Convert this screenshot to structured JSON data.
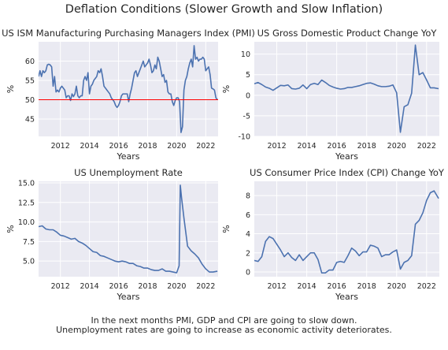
{
  "figure": {
    "title": "Deflation Conditions (Slower Growth and Slow Inflation)",
    "caption_line1": "In the next months PMI, GDP and CPI are going to slow down.",
    "caption_line2": "Unemployment rates are going to increase as economic activity deteriorates."
  },
  "colors": {
    "background": "#eaeaf2",
    "grid": "#ffffff",
    "line": "#4c72b0",
    "reference_line": "#ff0000",
    "text": "#262626"
  },
  "chart_data": [
    {
      "type": "line",
      "title": "US ISM Manufacturing Purchasing Managers Index (PMI)",
      "xlabel": "Years",
      "ylabel": "%",
      "xlim": [
        2010.5,
        2022.85
      ],
      "ylim": [
        40.5,
        65
      ],
      "xticks": [
        2012,
        2014,
        2016,
        2018,
        2020,
        2022
      ],
      "yticks": [
        45,
        50,
        55,
        60
      ],
      "grid": true,
      "hline": {
        "y": 50,
        "color": "#ff0000"
      },
      "series": [
        {
          "x": [
            2010.5,
            2010.6,
            2010.7,
            2010.8,
            2010.9,
            2011.0,
            2011.1,
            2011.2,
            2011.3,
            2011.4,
            2011.5,
            2011.6,
            2011.7,
            2011.8,
            2011.9,
            2012.0,
            2012.1,
            2012.2,
            2012.3,
            2012.4,
            2012.5,
            2012.6,
            2012.7,
            2012.8,
            2012.9,
            2013.0,
            2013.1,
            2013.2,
            2013.3,
            2013.4,
            2013.5,
            2013.6,
            2013.7,
            2013.8,
            2013.9,
            2014.0,
            2014.1,
            2014.2,
            2014.3,
            2014.4,
            2014.5,
            2014.6,
            2014.7,
            2014.8,
            2014.9,
            2015.0,
            2015.1,
            2015.2,
            2015.3,
            2015.4,
            2015.5,
            2015.6,
            2015.7,
            2015.8,
            2015.9,
            2016.0,
            2016.1,
            2016.2,
            2016.3,
            2016.4,
            2016.5,
            2016.6,
            2016.7,
            2016.8,
            2016.9,
            2017.0,
            2017.1,
            2017.2,
            2017.3,
            2017.4,
            2017.5,
            2017.6,
            2017.7,
            2017.8,
            2017.9,
            2018.0,
            2018.1,
            2018.2,
            2018.3,
            2018.4,
            2018.5,
            2018.6,
            2018.7,
            2018.8,
            2018.9,
            2019.0,
            2019.1,
            2019.2,
            2019.3,
            2019.4,
            2019.5,
            2019.6,
            2019.7,
            2019.8,
            2019.9,
            2020.0,
            2020.1,
            2020.2,
            2020.3,
            2020.4,
            2020.5,
            2020.6,
            2020.7,
            2020.8,
            2020.9,
            2021.0,
            2021.1,
            2021.2,
            2021.3,
            2021.4,
            2021.5,
            2021.6,
            2021.7,
            2021.8,
            2021.9,
            2022.0,
            2022.1,
            2022.2,
            2022.3,
            2022.4,
            2022.5,
            2022.6,
            2022.7,
            2022.8
          ],
          "y": [
            56,
            57.5,
            56,
            57.5,
            57,
            57.5,
            59,
            59.2,
            59,
            58.5,
            53.5,
            56,
            52,
            52.5,
            52,
            53,
            53.5,
            53,
            52.5,
            50.5,
            51,
            51,
            49.8,
            51.5,
            50.8,
            51.5,
            53.5,
            51,
            50.5,
            51,
            51,
            55,
            56,
            55,
            57,
            51.5,
            53.5,
            54,
            55,
            55.5,
            56,
            57.5,
            57,
            58,
            56,
            53.5,
            53,
            52.5,
            52,
            51.5,
            50.5,
            50,
            49.5,
            48.5,
            48,
            48.5,
            49.5,
            51,
            51.5,
            51.5,
            51.5,
            51.5,
            49.5,
            51.5,
            53,
            55,
            57,
            57.5,
            56,
            57,
            58,
            59,
            60,
            58.5,
            59,
            59.5,
            60.5,
            59,
            57,
            57.5,
            59,
            58,
            61,
            60,
            58,
            56,
            56.5,
            54.5,
            55,
            52,
            51.5,
            51.5,
            49.5,
            48.5,
            49.8,
            50.5,
            50.5,
            49.5,
            41.5,
            43,
            52.5,
            55,
            56,
            58,
            59.5,
            60.5,
            58.5,
            64,
            60.5,
            61,
            60,
            60.5,
            60.5,
            61,
            60.5,
            57.5,
            58,
            58.5,
            56.5,
            53,
            52.8,
            52.5,
            50.5,
            50
          ]
        }
      ]
    },
    {
      "type": "line",
      "title": "US Gross Domestic Product Change YoY",
      "xlabel": "Years",
      "ylabel": "%",
      "xlim": [
        2010.5,
        2022.85
      ],
      "ylim": [
        -10,
        13
      ],
      "xticks": [
        2012,
        2014,
        2016,
        2018,
        2020,
        2022
      ],
      "yticks": [
        -10,
        -5,
        0,
        5,
        10
      ],
      "grid": true,
      "series": [
        {
          "x": [
            2010.5,
            2010.75,
            2011.0,
            2011.25,
            2011.5,
            2011.75,
            2012.0,
            2012.25,
            2012.5,
            2012.75,
            2013.0,
            2013.25,
            2013.5,
            2013.75,
            2014.0,
            2014.25,
            2014.5,
            2014.75,
            2015.0,
            2015.25,
            2015.5,
            2015.75,
            2016.0,
            2016.25,
            2016.5,
            2016.75,
            2017.0,
            2017.25,
            2017.5,
            2017.75,
            2018.0,
            2018.25,
            2018.5,
            2018.75,
            2019.0,
            2019.25,
            2019.5,
            2019.75,
            2020.0,
            2020.25,
            2020.5,
            2020.75,
            2021.0,
            2021.25,
            2021.5,
            2021.75,
            2022.0,
            2022.25,
            2022.5,
            2022.8
          ],
          "y": [
            2.8,
            3.1,
            2.6,
            2.0,
            1.7,
            1.2,
            1.8,
            2.4,
            2.3,
            2.5,
            1.6,
            1.5,
            1.7,
            2.5,
            1.6,
            2.6,
            2.9,
            2.6,
            3.7,
            3.1,
            2.4,
            2.0,
            1.7,
            1.5,
            1.6,
            1.9,
            1.9,
            2.1,
            2.3,
            2.6,
            2.9,
            3.0,
            2.7,
            2.3,
            2.1,
            2.1,
            2.2,
            2.5,
            0.6,
            -9.0,
            -2.8,
            -2.3,
            0.5,
            12.2,
            5.0,
            5.5,
            3.7,
            1.8,
            1.8,
            1.6
          ]
        }
      ]
    },
    {
      "type": "line",
      "title": "US Unemployment Rate",
      "xlabel": "Years",
      "ylabel": "%",
      "xlim": [
        2010.5,
        2022.85
      ],
      "ylim": [
        3,
        15.2
      ],
      "xticks": [
        2012,
        2014,
        2016,
        2018,
        2020,
        2022
      ],
      "yticks": [
        5.0,
        7.5,
        10.0,
        12.5,
        15.0
      ],
      "grid": true,
      "series": [
        {
          "x": [
            2010.5,
            2010.75,
            2011.0,
            2011.25,
            2011.5,
            2011.75,
            2012.0,
            2012.25,
            2012.5,
            2012.75,
            2013.0,
            2013.25,
            2013.5,
            2013.75,
            2014.0,
            2014.25,
            2014.5,
            2014.75,
            2015.0,
            2015.25,
            2015.5,
            2015.75,
            2016.0,
            2016.25,
            2016.5,
            2016.75,
            2017.0,
            2017.25,
            2017.5,
            2017.75,
            2018.0,
            2018.25,
            2018.5,
            2018.75,
            2019.0,
            2019.25,
            2019.5,
            2019.75,
            2020.0,
            2020.17,
            2020.25,
            2020.33,
            2020.5,
            2020.75,
            2021.0,
            2021.25,
            2021.5,
            2021.75,
            2022.0,
            2022.25,
            2022.5,
            2022.8
          ],
          "y": [
            9.4,
            9.5,
            9.1,
            9.0,
            9.0,
            8.7,
            8.3,
            8.2,
            8.0,
            7.8,
            7.9,
            7.5,
            7.3,
            7.0,
            6.6,
            6.2,
            6.1,
            5.7,
            5.6,
            5.4,
            5.2,
            5.0,
            4.9,
            5.0,
            4.9,
            4.7,
            4.7,
            4.4,
            4.3,
            4.1,
            4.1,
            3.9,
            3.8,
            3.8,
            4.0,
            3.7,
            3.7,
            3.6,
            3.5,
            4.4,
            14.7,
            13.2,
            10.5,
            6.9,
            6.3,
            5.9,
            5.4,
            4.6,
            4.0,
            3.6,
            3.6,
            3.7
          ]
        }
      ]
    },
    {
      "type": "line",
      "title": "US Consumer Price Index (CPI) Change YoY",
      "xlabel": "Years",
      "ylabel": "%",
      "xlim": [
        2010.5,
        2022.85
      ],
      "ylim": [
        -0.5,
        9.5
      ],
      "xticks": [
        2012,
        2014,
        2016,
        2018,
        2020,
        2022
      ],
      "yticks": [
        0,
        2,
        4,
        6,
        8
      ],
      "grid": true,
      "series": [
        {
          "x": [
            2010.5,
            2010.75,
            2011.0,
            2011.25,
            2011.5,
            2011.75,
            2012.0,
            2012.25,
            2012.5,
            2012.75,
            2013.0,
            2013.25,
            2013.5,
            2013.75,
            2014.0,
            2014.25,
            2014.5,
            2014.75,
            2015.0,
            2015.25,
            2015.5,
            2015.75,
            2016.0,
            2016.25,
            2016.5,
            2016.75,
            2017.0,
            2017.25,
            2017.5,
            2017.75,
            2018.0,
            2018.25,
            2018.5,
            2018.75,
            2019.0,
            2019.25,
            2019.5,
            2019.75,
            2020.0,
            2020.25,
            2020.5,
            2020.75,
            2021.0,
            2021.25,
            2021.5,
            2021.75,
            2022.0,
            2022.25,
            2022.5,
            2022.8
          ],
          "y": [
            1.2,
            1.1,
            1.6,
            3.2,
            3.7,
            3.5,
            2.9,
            2.3,
            1.6,
            2.0,
            1.5,
            1.2,
            1.8,
            1.2,
            1.6,
            2.0,
            2.0,
            1.3,
            -0.1,
            -0.1,
            0.2,
            0.2,
            1.0,
            1.1,
            1.0,
            1.7,
            2.5,
            2.2,
            1.7,
            2.1,
            2.1,
            2.8,
            2.7,
            2.5,
            1.6,
            1.8,
            1.8,
            2.1,
            2.3,
            0.3,
            1.0,
            1.2,
            1.7,
            5.0,
            5.4,
            6.2,
            7.5,
            8.3,
            8.5,
            7.7
          ]
        }
      ]
    }
  ]
}
